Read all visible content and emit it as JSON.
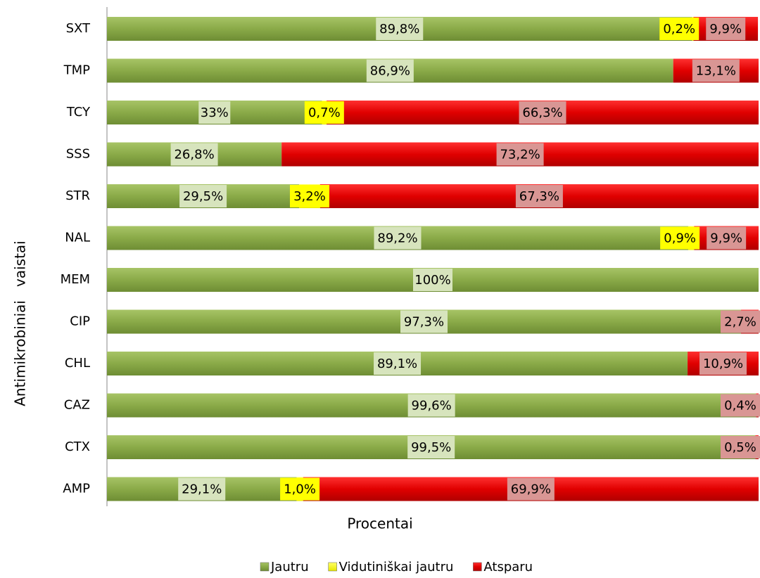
{
  "chart_data": {
    "type": "stacked-bar-horizontal",
    "y_label": "Antimikrobiniai   vaistai",
    "x_label": "Procentai",
    "categories": [
      "SXT",
      "TMP",
      "TCY",
      "SSS",
      "STR",
      "NAL",
      "MEM",
      "CIP",
      "CHL",
      "CAZ",
      "CTX",
      "AMP"
    ],
    "xlim": [
      0,
      100
    ],
    "legend": "bottom",
    "series": [
      {
        "name": "Jautru",
        "color": "#8aaa48",
        "values": [
          89.8,
          86.9,
          33,
          26.8,
          29.5,
          89.2,
          100,
          97.3,
          89.1,
          99.6,
          99.5,
          29.1
        ],
        "value_labels": [
          "89,8%",
          "86,9%",
          "33%",
          "26,8%",
          "29,5%",
          "89,2%",
          "100%",
          "97,3%",
          "89,1%",
          "99,6%",
          "99,5%",
          "29,1%"
        ]
      },
      {
        "name": "Vidutiniškai jautru",
        "color": "#ffff00",
        "values": [
          0.2,
          null,
          0.7,
          null,
          3.2,
          0.9,
          null,
          null,
          null,
          null,
          null,
          1.0
        ],
        "value_labels": [
          "0,2%",
          null,
          "0,7%",
          null,
          "3,2%",
          "0,9%",
          null,
          null,
          null,
          null,
          null,
          "1,0%"
        ]
      },
      {
        "name": "Atsparu",
        "color": "#e00000",
        "values": [
          9.9,
          13.1,
          66.3,
          73.2,
          67.3,
          9.9,
          null,
          2.7,
          10.9,
          0.4,
          0.5,
          69.9
        ],
        "value_labels": [
          "9,9%",
          "13,1%",
          "66,3%",
          "73,2%",
          "67,3%",
          "9,9%",
          null,
          "2,7%",
          "10,9%",
          "0,4%",
          "0,5%",
          "69,9%"
        ]
      }
    ]
  }
}
